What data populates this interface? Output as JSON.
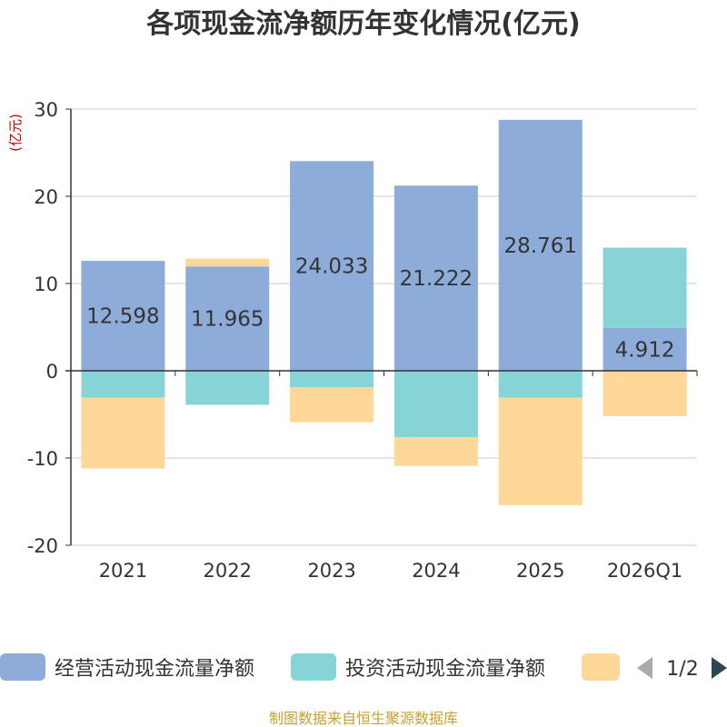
{
  "chart_data": {
    "type": "bar",
    "stacked": true,
    "title": "各项现金流净额历年变化情况(亿元)",
    "ylabel": "(亿元)",
    "xlabel": "",
    "ylim": [
      -20,
      30
    ],
    "yticks": [
      30,
      20,
      10,
      0,
      -10,
      -20
    ],
    "grid": true,
    "categories": [
      "2021",
      "2022",
      "2023",
      "2024",
      "2025",
      "2026Q1"
    ],
    "series": [
      {
        "name": "经营活动现金流量净额",
        "color": "#8eacd9",
        "values": [
          12.598,
          11.965,
          24.033,
          21.222,
          28.761,
          4.912
        ],
        "labels": [
          "12.598",
          "11.965",
          "24.033",
          "21.222",
          "28.761",
          "4.912"
        ]
      },
      {
        "name": "投资活动现金流量净额",
        "color": "#86d4d6",
        "values": [
          -3.1,
          -3.9,
          -1.9,
          -7.6,
          -3.1,
          9.2
        ]
      },
      {
        "name": "",
        "color": "#fed799",
        "values": [
          -8.1,
          0.9,
          -4.0,
          -3.3,
          -12.3,
          -5.2
        ]
      }
    ]
  },
  "legend": {
    "page": "1/2",
    "items": [
      "经营活动现金流量净额",
      "投资活动现金流量净额",
      ""
    ]
  },
  "source": "制图数据来自恒生聚源数据库",
  "colors": {
    "title": "#333333",
    "ylabel": "#cc0000",
    "source": "#c8a032",
    "grid": "#cccccc",
    "axis": "#333333"
  }
}
